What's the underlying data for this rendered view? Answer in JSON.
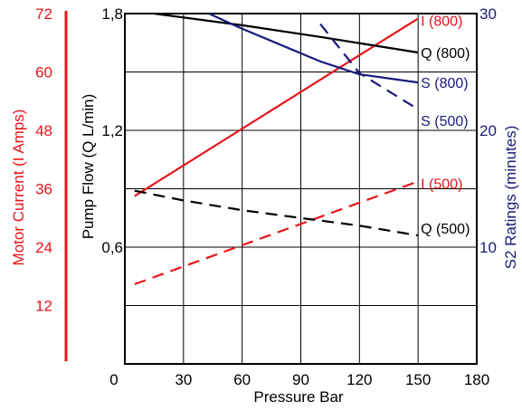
{
  "chart_data": {
    "type": "line",
    "xlabel": "Pressure Bar",
    "x_ticks": [
      "0",
      "30",
      "60",
      "90",
      "120",
      "150",
      "180"
    ],
    "xlim": [
      0,
      180
    ],
    "grid": true,
    "axes": {
      "current": {
        "label": "Motor Current (I Amps)",
        "ticks": [
          "72",
          "60",
          "48",
          "36",
          "24",
          "12"
        ],
        "ylim": [
          0,
          72
        ],
        "color": "#e8141a"
      },
      "flow": {
        "label": "Pump Flow (Q L/min)",
        "ticks": [
          "1,8",
          "1,2",
          "0,6"
        ],
        "ylim": [
          0,
          1.8
        ],
        "color": "#000000"
      },
      "rating": {
        "label": "S2 Ratings (minutes)",
        "ticks": [
          "30",
          "20",
          "10"
        ],
        "ylim": [
          0,
          30
        ],
        "color": "#1a1a7a"
      }
    },
    "series": [
      {
        "name": "I (800)",
        "axis": "current",
        "style": "solid",
        "color": "#e8141a",
        "x": [
          5,
          150
        ],
        "y": [
          34.5,
          71
        ]
      },
      {
        "name": "I (500)",
        "axis": "current",
        "style": "dashed",
        "color": "#e8141a",
        "x": [
          5,
          150
        ],
        "y": [
          16.4,
          37.5
        ]
      },
      {
        "name": "Q (800)",
        "axis": "flow",
        "style": "solid",
        "color": "#000000",
        "x": [
          15,
          60,
          100,
          150
        ],
        "y": [
          1.8,
          1.74,
          1.68,
          1.6
        ]
      },
      {
        "name": "Q (500)",
        "axis": "flow",
        "style": "dashed",
        "color": "#000000",
        "x": [
          5,
          30,
          60,
          90,
          120,
          150
        ],
        "y": [
          0.89,
          0.84,
          0.79,
          0.75,
          0.71,
          0.66
        ]
      },
      {
        "name": "S (800)",
        "axis": "rating",
        "style": "solid",
        "color": "#1a1a7a",
        "x": [
          43,
          60,
          80,
          100,
          120,
          150
        ],
        "y": [
          30,
          28.7,
          27.3,
          25.9,
          24.8,
          24.1
        ]
      },
      {
        "name": "S (500)",
        "axis": "rating",
        "style": "dashed",
        "color": "#1a1a7a",
        "x": [
          100,
          120,
          150
        ],
        "y": [
          29.1,
          24.9,
          21.8
        ]
      }
    ]
  }
}
